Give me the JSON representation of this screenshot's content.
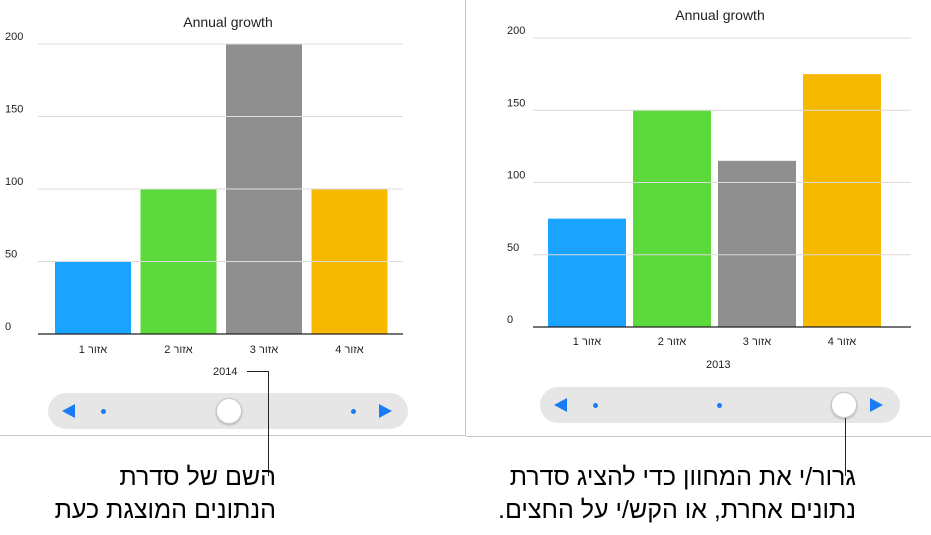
{
  "colors": {
    "region1": "#1aa3ff",
    "region2": "#5cd93b",
    "region3": "#8f8f8f",
    "region4": "#f7b900",
    "accent": "#1a7cf5"
  },
  "chart_data": [
    {
      "type": "bar",
      "title": "Annual growth",
      "categories": [
        "אזור 1",
        "אזור 2",
        "אזור 3",
        "אזור 4"
      ],
      "series_name": "2014",
      "values": [
        50,
        100,
        200,
        100
      ],
      "yticks": [
        "0",
        "50",
        "100",
        "150",
        "200"
      ],
      "ylim": [
        0,
        200
      ],
      "grid": true
    },
    {
      "type": "bar",
      "title": "Annual growth",
      "categories": [
        "אזור 1",
        "אזור 2",
        "אזור 3",
        "אזור 4"
      ],
      "series_name": "2013",
      "values": [
        75,
        150,
        115,
        175
      ],
      "yticks": [
        "0",
        "50",
        "100",
        "150",
        "200"
      ],
      "ylim": [
        0,
        200
      ],
      "grid": true
    }
  ],
  "callouts": {
    "left": [
      "השם של סדרת",
      "הנתונים המוצגת כעת"
    ],
    "right": [
      "גרור/י את המחוון כדי להציג סדרת",
      "נתונים אחרת, או הקש/י על החצים."
    ]
  }
}
